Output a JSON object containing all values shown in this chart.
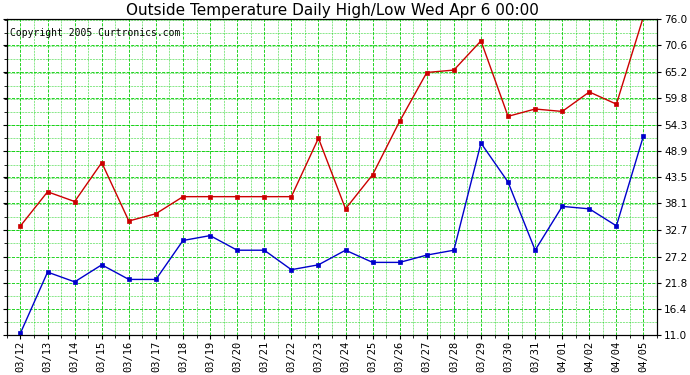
{
  "title": "Outside Temperature Daily High/Low Wed Apr 6 00:00",
  "copyright": "Copyright 2005 Curtronics.com",
  "x_labels": [
    "03/12",
    "03/13",
    "03/14",
    "03/15",
    "03/16",
    "03/17",
    "03/18",
    "03/19",
    "03/20",
    "03/21",
    "03/22",
    "03/23",
    "03/24",
    "03/25",
    "03/26",
    "03/27",
    "03/28",
    "03/29",
    "03/30",
    "03/31",
    "04/01",
    "04/02",
    "04/04",
    "04/05"
  ],
  "high_values": [
    33.5,
    40.5,
    38.5,
    46.5,
    34.5,
    36.0,
    39.5,
    39.5,
    39.5,
    39.5,
    39.5,
    51.5,
    37.0,
    44.0,
    55.0,
    65.0,
    65.5,
    71.5,
    56.0,
    57.5,
    57.0,
    61.0,
    58.5,
    76.5
  ],
  "low_values": [
    11.5,
    24.0,
    22.0,
    25.5,
    22.5,
    22.5,
    30.5,
    31.5,
    28.5,
    28.5,
    24.5,
    25.5,
    28.5,
    26.0,
    26.0,
    27.5,
    28.5,
    50.5,
    42.5,
    28.5,
    37.5,
    37.0,
    33.5,
    52.0
  ],
  "high_color": "#cc0000",
  "low_color": "#0000cc",
  "marker": "s",
  "marker_size": 2.5,
  "ylim": [
    11.0,
    76.0
  ],
  "yticks": [
    11.0,
    16.4,
    21.8,
    27.2,
    32.7,
    38.1,
    43.5,
    48.9,
    54.3,
    59.8,
    65.2,
    70.6,
    76.0
  ],
  "bg_color": "#ffffff",
  "grid_color": "#00cc00",
  "title_fontsize": 11,
  "copyright_fontsize": 7,
  "tick_fontsize": 7.5,
  "linewidth": 1.0
}
